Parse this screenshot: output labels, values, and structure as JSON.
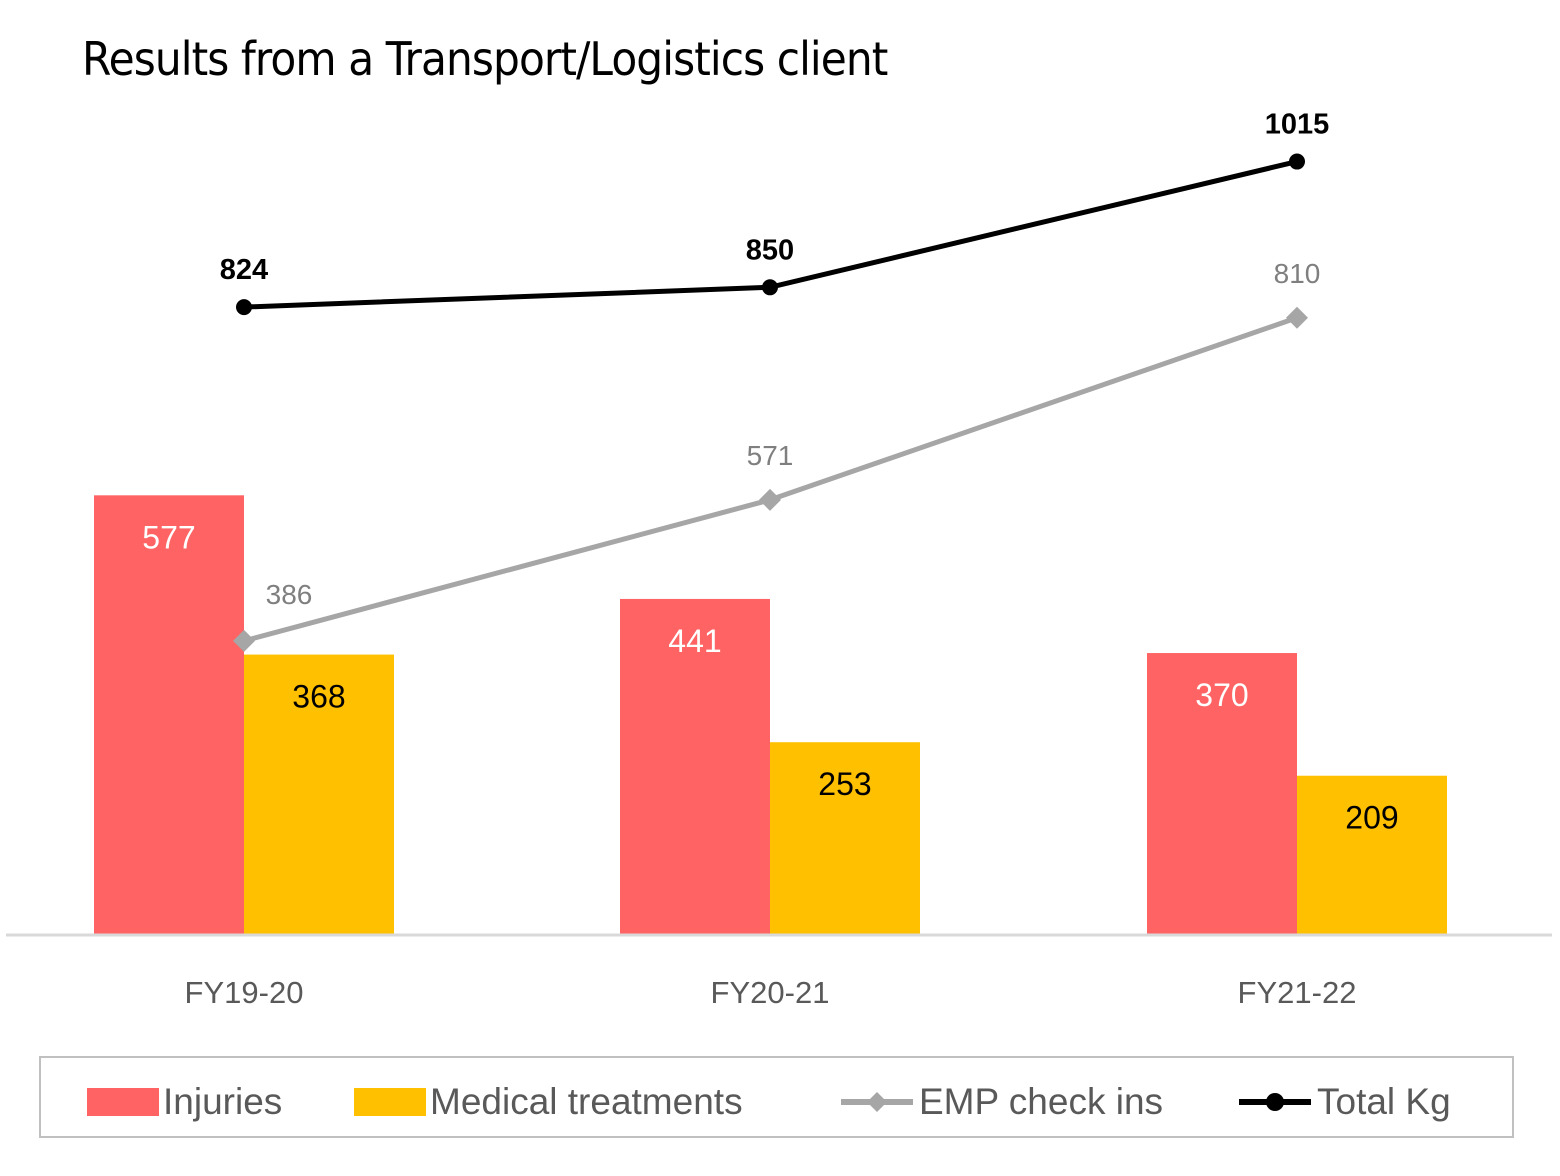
{
  "title": "Results from a Transport/Logistics client",
  "chart_data": {
    "type": "bar",
    "title": "Results from a Transport/Logistics client",
    "xlabel": "",
    "ylabel": "",
    "categories": [
      "FY19-20",
      "FY20-21",
      "FY21-22"
    ],
    "ylim": [
      0,
      1227
    ],
    "grid": false,
    "legend_position": "bottom",
    "series": [
      {
        "name": "Injuries",
        "kind": "bar",
        "color": "#FF6363",
        "label_color": "#FFFFFF",
        "values": [
          577,
          441,
          370
        ]
      },
      {
        "name": "Medical treatments",
        "kind": "bar",
        "color": "#FFC000",
        "label_color": "#000000",
        "values": [
          368,
          253,
          209
        ]
      },
      {
        "name": "EMP check ins",
        "kind": "line",
        "marker": "diamond",
        "color": "#A6A6A6",
        "label_color": "#7F7F7F",
        "values": [
          386,
          571,
          810
        ]
      },
      {
        "name": "Total Kg",
        "kind": "line",
        "marker": "circle",
        "color": "#000000",
        "label_color": "#000000",
        "values": [
          824,
          850,
          1015
        ]
      }
    ]
  },
  "legend": [
    {
      "label": "Injuries",
      "icon": "red-square-swatch"
    },
    {
      "label": "Medical treatments",
      "icon": "yellow-square-swatch"
    },
    {
      "label": "EMP check ins",
      "icon": "gray-line-diamond-swatch"
    },
    {
      "label": "Total Kg",
      "icon": "black-line-circle-swatch"
    }
  ]
}
